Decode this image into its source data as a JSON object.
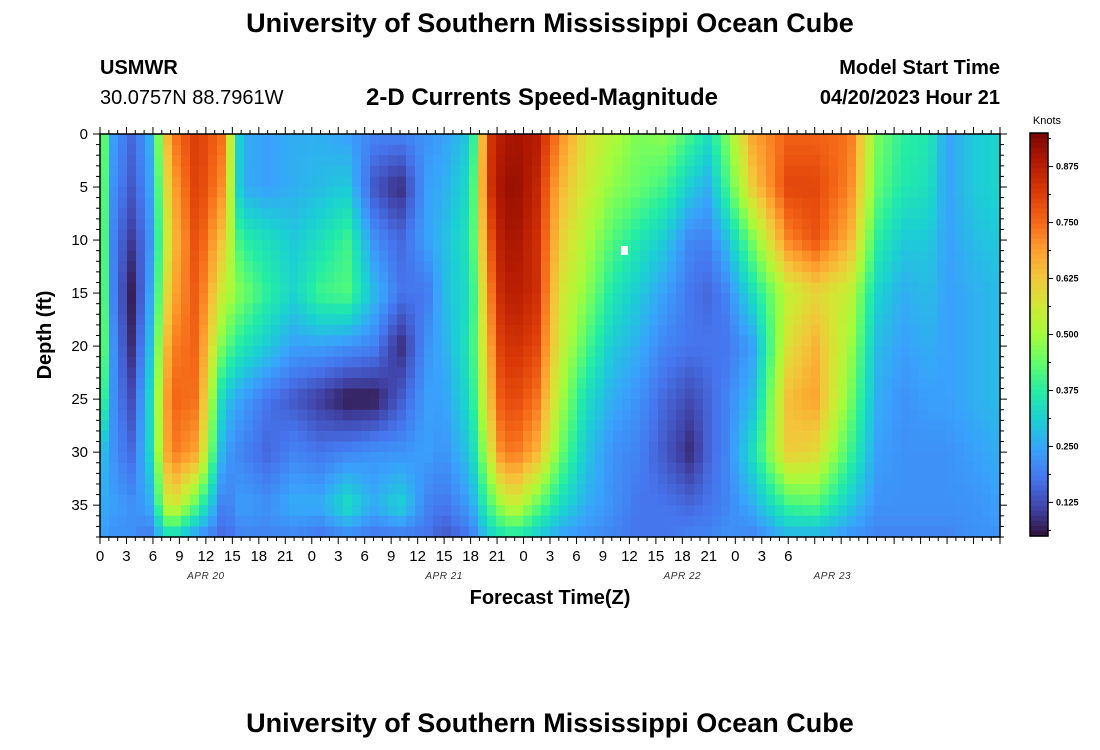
{
  "header": {
    "title": "University of Southern Mississippi Ocean Cube",
    "station": "USMWR",
    "coords": "30.0757N  88.7961W",
    "product": "2-D Currents Speed-Magnitude",
    "model_start_label": "Model Start Time",
    "model_start_value": "04/20/2023 Hour 21"
  },
  "footer": {
    "title": "University of Southern Mississippi Ocean Cube"
  },
  "colors": {
    "scale": [
      "#30123b",
      "#4145ab",
      "#4675ed",
      "#39a2fc",
      "#1bcfd4",
      "#24eca6",
      "#61fc6c",
      "#a4fc3b",
      "#d1e834",
      "#f3c63a",
      "#fe9b2d",
      "#f36315",
      "#d93806",
      "#b11901",
      "#7a0403"
    ]
  },
  "chart_data": {
    "type": "heatmap",
    "xlabel": "Forecast Time(Z)",
    "ylabel": "Depth (ft)",
    "colorbar_label": "Knots",
    "x_ticks": [
      "0",
      "3",
      "6",
      "9",
      "12",
      "15",
      "18",
      "21",
      "0",
      "3",
      "6",
      "9",
      "12",
      "15",
      "18",
      "21",
      "0",
      "3",
      "6",
      "9",
      "12",
      "15",
      "18",
      "21",
      "0",
      "3",
      "6"
    ],
    "date_labels": [
      {
        "label": "APR 20",
        "hour": 12
      },
      {
        "label": "APR 21",
        "hour": 39
      },
      {
        "label": "APR 22",
        "hour": 66
      },
      {
        "label": "APR 23",
        "hour": 83
      }
    ],
    "y_ticks": [
      "0",
      "5",
      "10",
      "15",
      "20",
      "25",
      "30",
      "35"
    ],
    "y_tick_values": [
      0,
      5,
      10,
      15,
      20,
      25,
      30,
      35
    ],
    "xlim_hours": [
      0,
      102
    ],
    "ylim_ft": [
      0,
      38
    ],
    "colorbar_ticks": [
      "0.125",
      "0.250",
      "0.375",
      "0.500",
      "0.625",
      "0.750",
      "0.875"
    ],
    "colorbar_tick_values": [
      0.125,
      0.25,
      0.375,
      0.5,
      0.625,
      0.75,
      0.875
    ],
    "colorbar_range": [
      0.05,
      0.95
    ],
    "field_times_h": [
      0,
      1.5,
      3.5,
      5.5,
      8,
      11,
      14,
      16,
      19,
      22,
      25,
      28,
      31,
      34,
      37,
      39,
      42,
      44,
      45.5,
      47,
      49.5,
      52,
      55,
      58,
      61,
      64,
      67,
      69,
      71,
      74,
      78,
      81,
      85,
      88,
      91,
      94,
      96,
      99,
      102
    ],
    "field_depths_ft": [
      0,
      5,
      10,
      15,
      20,
      25,
      30,
      35,
      38
    ],
    "field_knots": [
      [
        0.52,
        0.52,
        0.52,
        0.52,
        0.52,
        0.46,
        0.3,
        0.26,
        0.24
      ],
      [
        0.24,
        0.22,
        0.2,
        0.2,
        0.22,
        0.22,
        0.22,
        0.24,
        0.22
      ],
      [
        0.16,
        0.14,
        0.1,
        0.06,
        0.08,
        0.12,
        0.16,
        0.22,
        0.22
      ],
      [
        0.24,
        0.22,
        0.2,
        0.22,
        0.26,
        0.3,
        0.3,
        0.24,
        0.18
      ],
      [
        0.72,
        0.66,
        0.62,
        0.66,
        0.72,
        0.76,
        0.74,
        0.6,
        0.34
      ],
      [
        0.82,
        0.82,
        0.8,
        0.78,
        0.76,
        0.74,
        0.68,
        0.42,
        0.22
      ],
      [
        0.74,
        0.7,
        0.62,
        0.54,
        0.44,
        0.3,
        0.24,
        0.18,
        0.16
      ],
      [
        0.26,
        0.26,
        0.38,
        0.46,
        0.36,
        0.24,
        0.2,
        0.24,
        0.2
      ],
      [
        0.24,
        0.24,
        0.34,
        0.38,
        0.3,
        0.18,
        0.16,
        0.22,
        0.2
      ],
      [
        0.26,
        0.26,
        0.3,
        0.32,
        0.24,
        0.14,
        0.2,
        0.26,
        0.2
      ],
      [
        0.26,
        0.28,
        0.34,
        0.4,
        0.24,
        0.1,
        0.18,
        0.26,
        0.18
      ],
      [
        0.24,
        0.3,
        0.4,
        0.42,
        0.22,
        0.06,
        0.2,
        0.34,
        0.2
      ],
      [
        0.2,
        0.14,
        0.22,
        0.28,
        0.2,
        0.06,
        0.22,
        0.26,
        0.18
      ],
      [
        0.2,
        0.08,
        0.16,
        0.18,
        0.08,
        0.14,
        0.22,
        0.32,
        0.18
      ],
      [
        0.22,
        0.24,
        0.24,
        0.18,
        0.22,
        0.24,
        0.24,
        0.2,
        0.18
      ],
      [
        0.24,
        0.26,
        0.28,
        0.28,
        0.26,
        0.24,
        0.22,
        0.18,
        0.14
      ],
      [
        0.3,
        0.34,
        0.36,
        0.34,
        0.36,
        0.34,
        0.3,
        0.24,
        0.18
      ],
      [
        0.82,
        0.82,
        0.76,
        0.7,
        0.66,
        0.62,
        0.54,
        0.4,
        0.3
      ],
      [
        0.88,
        0.9,
        0.88,
        0.86,
        0.82,
        0.78,
        0.72,
        0.5,
        0.34
      ],
      [
        0.9,
        0.92,
        0.9,
        0.88,
        0.84,
        0.8,
        0.74,
        0.56,
        0.36
      ],
      [
        0.88,
        0.86,
        0.84,
        0.84,
        0.8,
        0.74,
        0.66,
        0.44,
        0.3
      ],
      [
        0.72,
        0.66,
        0.62,
        0.58,
        0.56,
        0.52,
        0.46,
        0.34,
        0.24
      ],
      [
        0.58,
        0.56,
        0.52,
        0.48,
        0.42,
        0.34,
        0.3,
        0.26,
        0.22
      ],
      [
        0.52,
        0.48,
        0.42,
        0.36,
        0.3,
        0.26,
        0.22,
        0.22,
        0.2
      ],
      [
        0.46,
        0.44,
        0.36,
        0.3,
        0.26,
        0.22,
        0.2,
        0.18,
        0.18
      ],
      [
        0.48,
        0.4,
        0.3,
        0.24,
        0.2,
        0.16,
        0.14,
        0.18,
        0.18
      ],
      [
        0.4,
        0.3,
        0.2,
        0.18,
        0.18,
        0.12,
        0.08,
        0.16,
        0.2
      ],
      [
        0.34,
        0.26,
        0.2,
        0.16,
        0.18,
        0.16,
        0.16,
        0.18,
        0.2
      ],
      [
        0.46,
        0.4,
        0.28,
        0.2,
        0.18,
        0.2,
        0.2,
        0.2,
        0.22
      ],
      [
        0.68,
        0.62,
        0.46,
        0.34,
        0.24,
        0.28,
        0.34,
        0.26,
        0.2
      ],
      [
        0.76,
        0.8,
        0.72,
        0.54,
        0.58,
        0.64,
        0.62,
        0.4,
        0.26
      ],
      [
        0.76,
        0.8,
        0.78,
        0.6,
        0.66,
        0.68,
        0.6,
        0.42,
        0.26
      ],
      [
        0.74,
        0.72,
        0.66,
        0.54,
        0.5,
        0.46,
        0.4,
        0.3,
        0.22
      ],
      [
        0.46,
        0.44,
        0.38,
        0.32,
        0.28,
        0.26,
        0.24,
        0.22,
        0.2
      ],
      [
        0.38,
        0.36,
        0.3,
        0.26,
        0.24,
        0.22,
        0.22,
        0.22,
        0.2
      ],
      [
        0.36,
        0.34,
        0.3,
        0.28,
        0.26,
        0.24,
        0.22,
        0.22,
        0.2
      ],
      [
        0.24,
        0.24,
        0.24,
        0.24,
        0.24,
        0.24,
        0.22,
        0.22,
        0.2
      ],
      [
        0.3,
        0.3,
        0.28,
        0.26,
        0.26,
        0.26,
        0.24,
        0.22,
        0.22
      ],
      [
        0.32,
        0.32,
        0.3,
        0.28,
        0.28,
        0.28,
        0.26,
        0.24,
        0.22
      ]
    ]
  }
}
